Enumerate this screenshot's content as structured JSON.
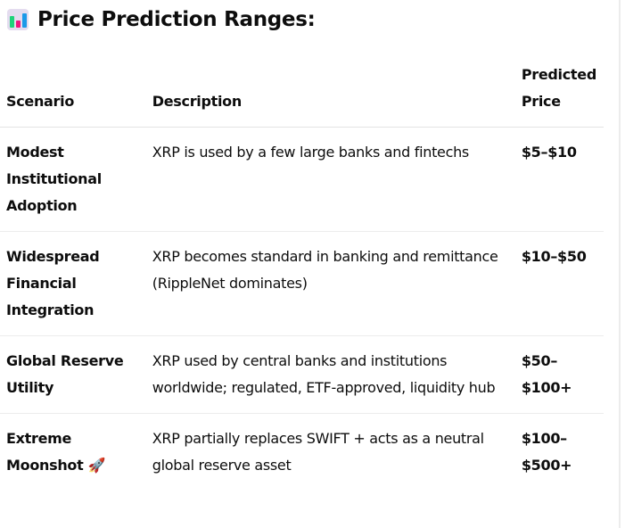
{
  "heading": {
    "icon": "bar-chart-icon",
    "title": "Price Prediction Ranges:"
  },
  "table": {
    "headers": [
      "Scenario",
      "Description",
      "Predicted Price"
    ],
    "rows": [
      {
        "scenario": "Modest Institutional Adoption",
        "description": "XRP is used by a few large banks and fintechs",
        "price": "$5–$10"
      },
      {
        "scenario": "Widespread Financial Integration",
        "description": "XRP becomes standard in banking and remittance (RippleNet dominates)",
        "price": "$10–$50"
      },
      {
        "scenario": "Global Reserve Utility",
        "description": "XRP used by central banks and institutions worldwide; regulated, ETF-approved, liquidity hub",
        "price": "$50–$100+"
      },
      {
        "scenario": "Extreme Moonshot 🚀",
        "description": "XRP partially replaces SWIFT + acts as a neutral global reserve asset",
        "price": "$100–$500+"
      }
    ]
  }
}
